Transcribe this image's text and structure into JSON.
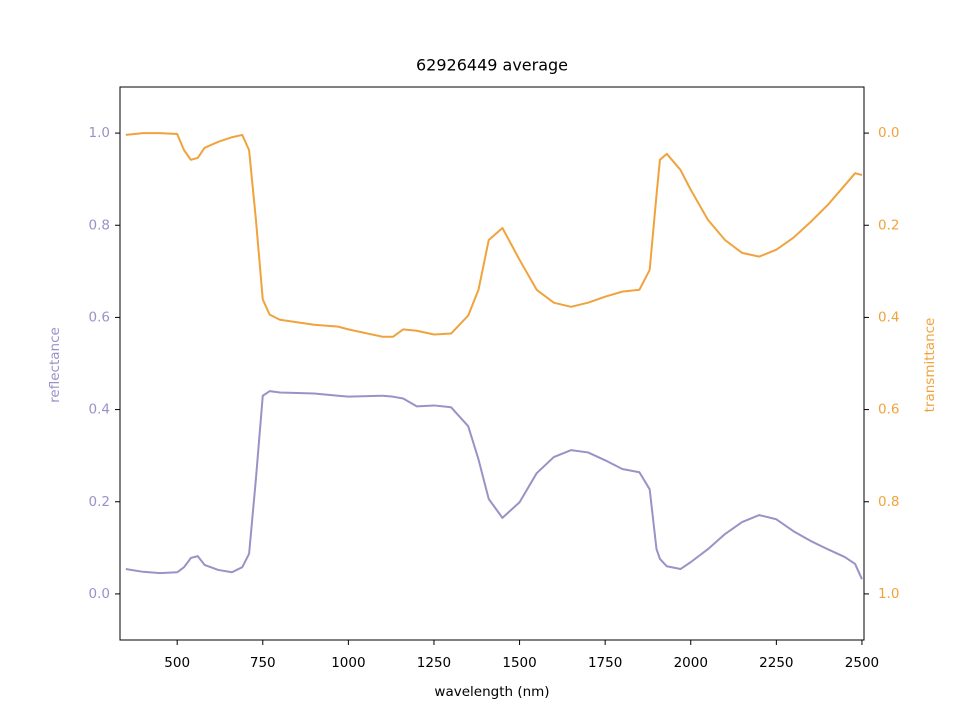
{
  "chart_data": {
    "type": "line",
    "title": "62926449 average",
    "x_label": "wavelength (nm)",
    "y_label": "reflectance",
    "y2_label": "transmittance",
    "x": [
      350,
      400,
      450,
      500,
      520,
      540,
      560,
      580,
      620,
      660,
      690,
      710,
      730,
      750,
      770,
      800,
      900,
      970,
      1000,
      1100,
      1130,
      1160,
      1200,
      1250,
      1300,
      1350,
      1380,
      1410,
      1450,
      1500,
      1550,
      1600,
      1650,
      1700,
      1750,
      1800,
      1850,
      1880,
      1900,
      1910,
      1930,
      1970,
      2000,
      2050,
      2100,
      2150,
      2200,
      2250,
      2300,
      2350,
      2400,
      2450,
      2480,
      2500
    ],
    "series": [
      {
        "name": "reflectance",
        "color": "#9893c6",
        "axis": "y",
        "values": [
          0.054,
          0.048,
          0.045,
          0.047,
          0.058,
          0.078,
          0.082,
          0.063,
          0.052,
          0.047,
          0.058,
          0.087,
          0.25,
          0.43,
          0.44,
          0.437,
          0.435,
          0.43,
          0.428,
          0.43,
          0.428,
          0.424,
          0.407,
          0.409,
          0.405,
          0.364,
          0.292,
          0.206,
          0.165,
          0.199,
          0.262,
          0.297,
          0.312,
          0.307,
          0.29,
          0.271,
          0.264,
          0.227,
          0.097,
          0.076,
          0.06,
          0.054,
          0.069,
          0.097,
          0.13,
          0.156,
          0.171,
          0.162,
          0.136,
          0.115,
          0.097,
          0.08,
          0.065,
          0.032
        ]
      },
      {
        "name": "transmittance",
        "color": "#f0a33c",
        "axis": "y2",
        "values": [
          0.004,
          0.0,
          0.0,
          0.002,
          0.037,
          0.058,
          0.054,
          0.032,
          0.019,
          0.009,
          0.004,
          0.037,
          0.188,
          0.361,
          0.394,
          0.405,
          0.416,
          0.42,
          0.426,
          0.442,
          0.442,
          0.426,
          0.429,
          0.437,
          0.435,
          0.396,
          0.34,
          0.232,
          0.206,
          0.275,
          0.34,
          0.368,
          0.377,
          0.368,
          0.355,
          0.344,
          0.34,
          0.297,
          0.134,
          0.058,
          0.045,
          0.08,
          0.123,
          0.188,
          0.232,
          0.26,
          0.268,
          0.253,
          0.227,
          0.193,
          0.156,
          0.113,
          0.087,
          0.091
        ]
      }
    ],
    "xlim": [
      333,
      2506
    ],
    "xticks": [
      500,
      750,
      1000,
      1250,
      1500,
      1750,
      2000,
      2250,
      2500
    ],
    "ylim": [
      -0.1,
      1.1
    ],
    "yticks": [
      {
        "value": 0,
        "label": "0.0"
      },
      0.2,
      0.4,
      0.6,
      0.8,
      {
        "value": 1,
        "label": "1.0"
      }
    ],
    "y2lim": [
      1.1,
      -0.1
    ],
    "y2ticks": [
      {
        "value": 0,
        "label": "0.0"
      },
      0.2,
      0.4,
      0.6,
      0.8,
      {
        "value": 1,
        "label": "1.0"
      }
    ]
  }
}
